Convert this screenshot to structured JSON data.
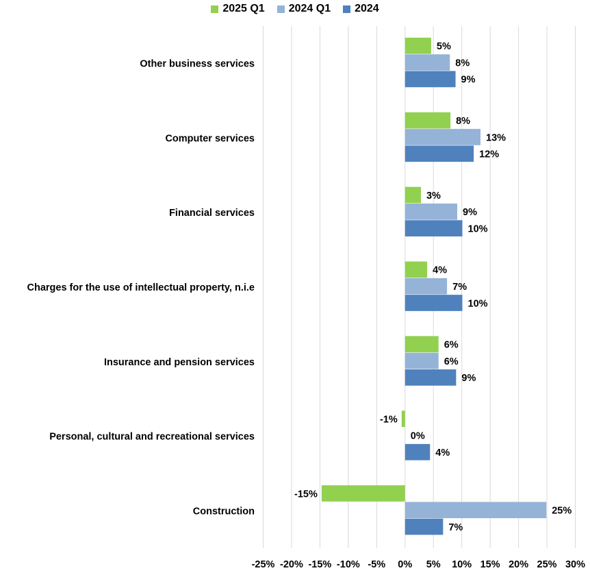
{
  "chart_data": {
    "type": "bar",
    "orientation": "horizontal",
    "title": "",
    "xlabel": "",
    "ylabel": "",
    "xlim": [
      -25,
      30
    ],
    "x_ticks": [
      -25,
      -20,
      -15,
      -10,
      -5,
      0,
      5,
      10,
      15,
      20,
      25,
      30
    ],
    "x_tick_labels": [
      "-25%",
      "-20%",
      "-15%",
      "-10%",
      "-5%",
      "0%",
      "5%",
      "10%",
      "15%",
      "20%",
      "25%",
      "30%"
    ],
    "grid": "vertical",
    "legend_position": "top",
    "categories": [
      "Other business services",
      "Computer services",
      "Financial services",
      "Charges for the use of intellectual property, n.i.e",
      "Insurance and pension services",
      "Personal, cultural and recreational services",
      "Construction"
    ],
    "series": [
      {
        "name": "2025 Q1",
        "color": "#92D050",
        "values": [
          4.6,
          8.0,
          2.8,
          3.9,
          5.9,
          -0.6,
          -14.7
        ],
        "labels": [
          "5%",
          "8%",
          "3%",
          "4%",
          "6%",
          "-1%",
          "-15%"
        ]
      },
      {
        "name": "2024 Q1",
        "color": "#95B3D7",
        "values": [
          7.9,
          13.3,
          9.2,
          7.4,
          5.9,
          0.0,
          24.9
        ],
        "labels": [
          "8%",
          "13%",
          "9%",
          "7%",
          "6%",
          "0%",
          "25%"
        ]
      },
      {
        "name": "2024",
        "color": "#4F81BD",
        "values": [
          8.9,
          12.1,
          10.1,
          10.1,
          9.0,
          4.4,
          6.7
        ],
        "labels": [
          "9%",
          "12%",
          "10%",
          "10%",
          "9%",
          "4%",
          "7%"
        ]
      }
    ]
  }
}
